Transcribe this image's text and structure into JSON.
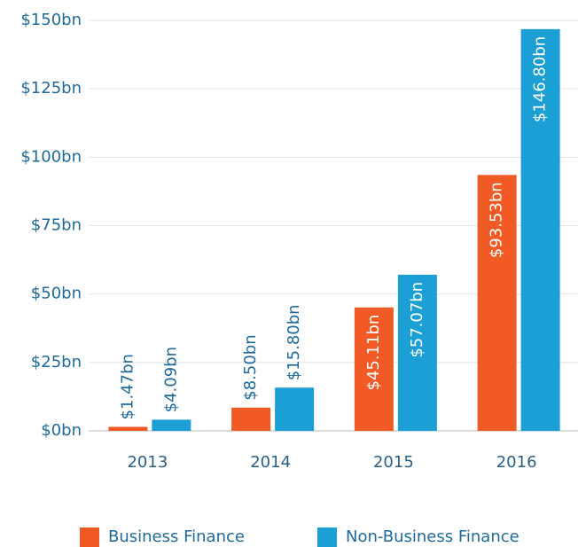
{
  "chart_data": {
    "type": "bar",
    "categories": [
      "2013",
      "2014",
      "2015",
      "2016"
    ],
    "series": [
      {
        "name": "Business Finance",
        "color": "#f15a24",
        "values": [
          1.47,
          8.5,
          45.11,
          93.53
        ],
        "value_labels": [
          "$1.47bn",
          "$8.50bn",
          "$45.11bn",
          "$93.53bn"
        ]
      },
      {
        "name": "Non-Business Finance",
        "color": "#1b9fd4",
        "values": [
          4.09,
          15.8,
          57.07,
          146.8
        ],
        "value_labels": [
          "$4.09bn",
          "$15.80bn",
          "$57.07bn",
          "$146.80bn"
        ]
      }
    ],
    "ylim": [
      0,
      150
    ],
    "yticks": [
      {
        "value": 0,
        "label": "$0bn"
      },
      {
        "value": 25,
        "label": "$25bn"
      },
      {
        "value": 50,
        "label": "$50bn"
      },
      {
        "value": 75,
        "label": "$75bn"
      },
      {
        "value": 100,
        "label": "$100bn"
      },
      {
        "value": 125,
        "label": "$125bn"
      },
      {
        "value": 150,
        "label": "$150bn"
      }
    ],
    "grid": true,
    "legend": "bottom"
  }
}
